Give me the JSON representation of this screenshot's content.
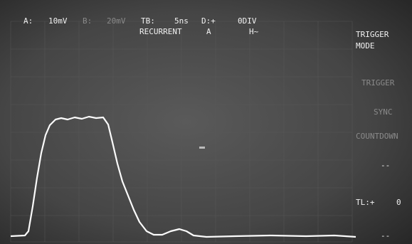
{
  "status": {
    "line1": [
      "A:",
      "10mV",
      "B:",
      "20mV",
      "TB:",
      "5ns",
      "D:+",
      "0DIV"
    ],
    "line2": [
      "RECURRENT",
      "A",
      "H~"
    ]
  },
  "menu": {
    "title": [
      "TRIGGER",
      "MODE"
    ],
    "items": [
      "TRIGGER",
      "SYNC",
      "COUNTDOWN",
      "--"
    ],
    "trigger_level": {
      "label": "TL:+",
      "value": "0"
    },
    "footer": "--"
  }
}
